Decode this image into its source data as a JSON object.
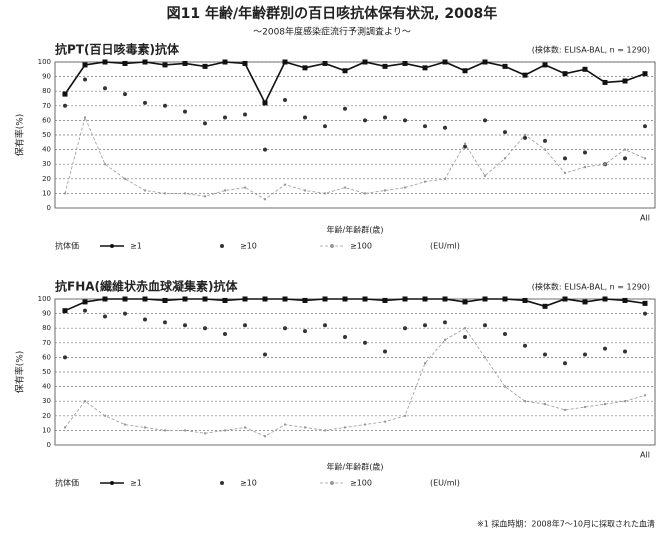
{
  "figure": {
    "title": "図11 年齢/年齢群別の百日咳抗体保有状況, 2008年",
    "subtitle": "～2008年度感染症流行予測調査より～",
    "footnote": "※1 採血時期：2008年7～10月に採取された血清"
  },
  "chart_data": [
    {
      "type": "line",
      "title": "抗PT(百日咳毒素)抗体",
      "annotation": "(検体数: ELISA-BAL, n = 1290)",
      "x_label": "年齢/年齢群(歳)",
      "y_label": "保有率(%)",
      "legend_title": "抗体価",
      "unit": "(EU/ml)",
      "categories": [
        null,
        null,
        null,
        null,
        null,
        null,
        null,
        null,
        null,
        null,
        null,
        null,
        null,
        null,
        null,
        null,
        null,
        null,
        null,
        null,
        null,
        null,
        null,
        null,
        null,
        null,
        null,
        null,
        null,
        "All"
      ],
      "ylim": [
        0,
        100
      ],
      "yticks": [
        0,
        10,
        20,
        30,
        40,
        50,
        60,
        70,
        80,
        90,
        100
      ],
      "grid": true,
      "series": [
        {
          "name": "≥1",
          "color": "#111111",
          "line": "solid",
          "values": [
            78,
            98,
            100,
            99,
            100,
            98,
            99,
            97,
            100,
            99,
            72,
            100,
            96,
            99,
            94,
            100,
            97,
            99,
            96,
            100,
            94,
            100,
            97,
            91,
            98,
            92,
            95,
            86,
            87,
            92
          ]
        },
        {
          "name": "≥10",
          "color": "#333333",
          "line": "none",
          "values": [
            70,
            88,
            82,
            78,
            72,
            70,
            66,
            58,
            62,
            64,
            40,
            74,
            62,
            56,
            68,
            60,
            62,
            60,
            56,
            55,
            42,
            60,
            52,
            48,
            46,
            34,
            38,
            30,
            34,
            56
          ]
        },
        {
          "name": "≥100",
          "color": "#999999",
          "line": "dashed",
          "values": [
            10,
            62,
            30,
            20,
            12,
            10,
            10,
            8,
            12,
            14,
            6,
            16,
            12,
            10,
            14,
            10,
            12,
            14,
            18,
            20,
            44,
            22,
            34,
            50,
            40,
            24,
            28,
            30,
            40,
            34
          ]
        }
      ]
    },
    {
      "type": "line",
      "title": "抗FHA(繊維状赤血球凝集素)抗体",
      "annotation": "(検体数: ELISA-BAL, n = 1290)",
      "x_label": "年齢/年齢群(歳)",
      "y_label": "保有率(%)",
      "legend_title": "抗体価",
      "unit": "(EU/ml)",
      "categories": [
        null,
        null,
        null,
        null,
        null,
        null,
        null,
        null,
        null,
        null,
        null,
        null,
        null,
        null,
        null,
        null,
        null,
        null,
        null,
        null,
        null,
        null,
        null,
        null,
        null,
        null,
        null,
        null,
        null,
        "All"
      ],
      "ylim": [
        0,
        100
      ],
      "yticks": [
        0,
        10,
        20,
        30,
        40,
        50,
        60,
        70,
        80,
        90,
        100
      ],
      "grid": true,
      "series": [
        {
          "name": "≥1",
          "color": "#111111",
          "line": "solid",
          "values": [
            92,
            98,
            100,
            100,
            100,
            99,
            100,
            100,
            99,
            100,
            100,
            100,
            99,
            100,
            100,
            100,
            99,
            100,
            100,
            100,
            98,
            100,
            100,
            99,
            95,
            100,
            98,
            100,
            99,
            97
          ]
        },
        {
          "name": "≥10",
          "color": "#333333",
          "line": "none",
          "values": [
            60,
            92,
            88,
            90,
            86,
            84,
            82,
            80,
            76,
            82,
            62,
            80,
            78,
            82,
            74,
            70,
            64,
            80,
            82,
            84,
            74,
            82,
            76,
            68,
            62,
            56,
            62,
            66,
            64,
            90
          ]
        },
        {
          "name": "≥100",
          "color": "#999999",
          "line": "dashed",
          "values": [
            12,
            30,
            20,
            14,
            12,
            10,
            10,
            8,
            10,
            12,
            6,
            14,
            12,
            10,
            12,
            14,
            16,
            20,
            56,
            72,
            80,
            60,
            40,
            30,
            28,
            24,
            26,
            28,
            30,
            34
          ]
        }
      ]
    }
  ]
}
